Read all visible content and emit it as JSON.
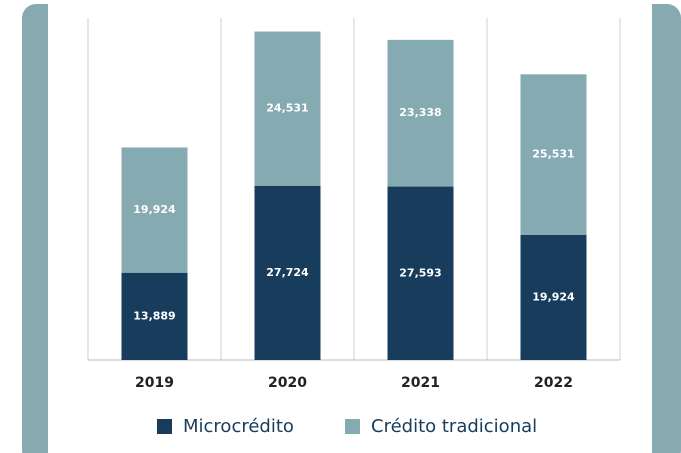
{
  "chart_data": {
    "type": "stacked_bar",
    "categories": [
      "2019",
      "2020",
      "2021",
      "2022"
    ],
    "series": [
      {
        "name": "Microcrédito",
        "color": "#173c5c",
        "values": [
          13889,
          27724,
          27593,
          19924
        ],
        "value_labels": [
          "13,889",
          "27,724",
          "27,593",
          "19,924"
        ]
      },
      {
        "name": "Crédito tradicional",
        "color": "#86aab2",
        "values": [
          19924,
          24531,
          23338,
          25531
        ],
        "value_labels": [
          "19,924",
          "24,531",
          "23,338",
          "25,531"
        ]
      }
    ],
    "ylim": [
      0,
      56000
    ]
  }
}
